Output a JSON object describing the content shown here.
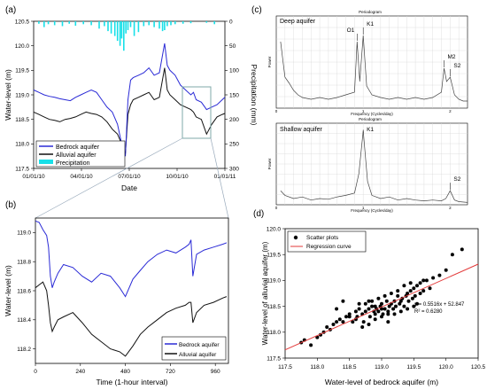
{
  "panel_labels": {
    "a": "(a)",
    "b": "(b)",
    "c": "(c)",
    "d": "(d)"
  },
  "colors": {
    "bedrock": "#2a2ad6",
    "alluvial": "#111111",
    "precip": "#18e0e8",
    "regression": "#e33a3a",
    "scatter": "#000000",
    "highlight_box": "#7fa9a9"
  },
  "chart_data": [
    {
      "id": "a",
      "type": "line",
      "xlabel": "Date",
      "ylabel": "Water-level (m)",
      "y2label": "Precipitation (mm)",
      "xticks": [
        "01/01/10",
        "04/01/10",
        "07/01/10",
        "10/01/10",
        "01/01/11"
      ],
      "yticks": [
        "117.5",
        "118.0",
        "118.5",
        "119.0",
        "119.5",
        "120.0",
        "120.5"
      ],
      "y2ticks": [
        "0",
        "50",
        "100",
        "150",
        "200",
        "250",
        "300"
      ],
      "ylim": [
        117.5,
        120.5
      ],
      "y2lim": [
        0,
        300
      ],
      "x_unit": "day of 2010",
      "xlim": [
        0,
        365
      ],
      "legend": [
        "Bedrock aquifer",
        "Alluvial aquifer",
        "Precipitation"
      ],
      "legend_position": "bottom-left",
      "series": [
        {
          "name": "Bedrock aquifer",
          "x": [
            0,
            10,
            20,
            30,
            40,
            50,
            60,
            70,
            80,
            90,
            100,
            110,
            120,
            130,
            140,
            150,
            160,
            170,
            175,
            180,
            185,
            190,
            200,
            210,
            220,
            230,
            240,
            250,
            255,
            260,
            270,
            280,
            290,
            300,
            305,
            310,
            320,
            330,
            340,
            350,
            360,
            365
          ],
          "y": [
            119.1,
            119.05,
            119.0,
            118.97,
            118.95,
            118.92,
            118.9,
            118.88,
            118.95,
            119.0,
            119.05,
            119.1,
            119.05,
            118.9,
            118.75,
            118.65,
            118.4,
            117.9,
            117.75,
            118.9,
            119.3,
            119.35,
            119.4,
            119.45,
            119.55,
            119.4,
            119.45,
            120.05,
            119.6,
            119.5,
            119.4,
            119.2,
            119.1,
            119.0,
            119.05,
            118.9,
            118.85,
            118.7,
            118.75,
            118.8,
            118.9,
            118.95
          ]
        },
        {
          "name": "Alluvial aquifer",
          "x": [
            0,
            10,
            20,
            30,
            40,
            50,
            60,
            70,
            80,
            90,
            100,
            110,
            120,
            130,
            140,
            150,
            160,
            170,
            175,
            180,
            185,
            190,
            200,
            210,
            220,
            230,
            240,
            250,
            255,
            260,
            270,
            280,
            290,
            300,
            305,
            310,
            320,
            330,
            340,
            350,
            360,
            365
          ],
          "y": [
            118.65,
            118.6,
            118.55,
            118.5,
            118.48,
            118.45,
            118.5,
            118.52,
            118.55,
            118.6,
            118.65,
            118.62,
            118.6,
            118.55,
            118.45,
            118.3,
            118.2,
            117.95,
            117.8,
            118.6,
            118.8,
            118.9,
            118.95,
            119.0,
            119.05,
            118.9,
            118.95,
            119.55,
            119.1,
            119.0,
            118.9,
            118.8,
            118.75,
            118.7,
            118.65,
            118.55,
            118.5,
            118.2,
            118.4,
            118.55,
            118.6,
            118.62
          ]
        },
        {
          "name": "Precipitation",
          "x": [
            10,
            20,
            28,
            40,
            55,
            68,
            80,
            95,
            110,
            125,
            135,
            142,
            148,
            155,
            160,
            165,
            168,
            172,
            176,
            180,
            185,
            192,
            200,
            210,
            220,
            230,
            240,
            246,
            250,
            255,
            262,
            270,
            285,
            300,
            330,
            345
          ],
          "y": [
            5,
            12,
            6,
            8,
            10,
            5,
            9,
            6,
            8,
            15,
            10,
            20,
            25,
            30,
            40,
            50,
            35,
            60,
            25,
            18,
            12,
            30,
            22,
            10,
            8,
            12,
            15,
            20,
            18,
            10,
            8,
            6,
            5,
            4,
            3,
            6
          ]
        }
      ]
    },
    {
      "id": "b",
      "type": "line",
      "xlabel": "Time (1-hour interval)",
      "ylabel": "Water-level (m)",
      "xticks": [
        "0",
        "240",
        "480",
        "720",
        "960"
      ],
      "yticks": [
        "118.2",
        "118.4",
        "118.6",
        "118.8",
        "119.0"
      ],
      "xlim": [
        0,
        1030
      ],
      "ylim": [
        118.1,
        119.1
      ],
      "legend": [
        "Bedrock aquifer",
        "Alluvial aquifer"
      ],
      "legend_position": "bottom-right",
      "series": [
        {
          "name": "Bedrock aquifer",
          "x": [
            0,
            20,
            40,
            60,
            70,
            80,
            90,
            100,
            120,
            150,
            200,
            250,
            300,
            350,
            400,
            450,
            480,
            520,
            560,
            600,
            650,
            700,
            750,
            800,
            820,
            830,
            840,
            860,
            900,
            950,
            1000,
            1020
          ],
          "y": [
            119.08,
            119.07,
            119.02,
            118.98,
            118.9,
            118.7,
            118.62,
            118.66,
            118.72,
            118.78,
            118.76,
            118.7,
            118.66,
            118.72,
            118.7,
            118.62,
            118.56,
            118.68,
            118.74,
            118.8,
            118.85,
            118.88,
            118.86,
            118.9,
            118.92,
            118.95,
            118.7,
            118.85,
            118.88,
            118.9,
            118.92,
            118.93
          ]
        },
        {
          "name": "Alluvial aquifer",
          "x": [
            0,
            20,
            40,
            60,
            70,
            80,
            90,
            100,
            120,
            150,
            200,
            250,
            300,
            350,
            400,
            450,
            480,
            520,
            560,
            600,
            650,
            700,
            750,
            800,
            820,
            830,
            840,
            860,
            900,
            950,
            1000,
            1020
          ],
          "y": [
            118.62,
            118.64,
            118.66,
            118.6,
            118.5,
            118.38,
            118.32,
            118.35,
            118.4,
            118.42,
            118.45,
            118.38,
            118.3,
            118.25,
            118.2,
            118.18,
            118.15,
            118.22,
            118.3,
            118.35,
            118.4,
            118.45,
            118.48,
            118.5,
            118.52,
            118.52,
            118.38,
            118.45,
            118.5,
            118.52,
            118.55,
            118.56
          ]
        }
      ]
    },
    {
      "id": "c_deep",
      "type": "line",
      "title": "Periodogram",
      "panel_title": "Deep aquifer",
      "xlabel": "Frequency (Cycles/day)",
      "ylabel": "Power",
      "xticks": [
        "0",
        "1",
        "2"
      ],
      "xlim": [
        0,
        2.2
      ],
      "annotations": [
        {
          "label": "O1",
          "x": 0.93
        },
        {
          "label": "K1",
          "x": 1.0
        },
        {
          "label": "M2",
          "x": 1.93
        },
        {
          "label": "S2",
          "x": 2.0
        }
      ],
      "series": [
        {
          "name": "",
          "x": [
            0.05,
            0.1,
            0.15,
            0.2,
            0.25,
            0.3,
            0.4,
            0.5,
            0.6,
            0.7,
            0.8,
            0.9,
            0.93,
            0.96,
            1.0,
            1.04,
            1.1,
            1.2,
            1.3,
            1.4,
            1.5,
            1.6,
            1.7,
            1.8,
            1.9,
            1.93,
            1.96,
            2.0,
            2.05,
            2.1,
            2.15,
            2.2
          ],
          "y": [
            0.75,
            0.35,
            0.28,
            0.2,
            0.15,
            0.12,
            0.1,
            0.12,
            0.1,
            0.12,
            0.15,
            0.18,
            0.75,
            0.3,
            0.82,
            0.25,
            0.15,
            0.12,
            0.1,
            0.12,
            0.1,
            0.12,
            0.1,
            0.12,
            0.18,
            0.45,
            0.3,
            0.35,
            0.15,
            0.1,
            0.08,
            0.08
          ]
        }
      ]
    },
    {
      "id": "c_shallow",
      "type": "line",
      "title": "Periodogram",
      "panel_title": "Shallow aquifer",
      "xlabel": "Frequency (Cycles/day)",
      "ylabel": "Power",
      "xticks": [
        "0",
        "1",
        "2"
      ],
      "xlim": [
        0,
        2.2
      ],
      "annotations": [
        {
          "label": "K1",
          "x": 1.0
        },
        {
          "label": "S2",
          "x": 2.0
        }
      ],
      "series": [
        {
          "name": "",
          "x": [
            0.05,
            0.1,
            0.2,
            0.3,
            0.4,
            0.5,
            0.6,
            0.7,
            0.8,
            0.9,
            0.95,
            1.0,
            1.05,
            1.1,
            1.2,
            1.3,
            1.4,
            1.5,
            1.6,
            1.7,
            1.8,
            1.9,
            1.95,
            2.0,
            2.05,
            2.1,
            2.2
          ],
          "y": [
            0.18,
            0.12,
            0.08,
            0.1,
            0.06,
            0.08,
            0.07,
            0.1,
            0.12,
            0.15,
            0.4,
            0.95,
            0.3,
            0.12,
            0.08,
            0.1,
            0.06,
            0.08,
            0.06,
            0.05,
            0.06,
            0.05,
            0.08,
            0.18,
            0.06,
            0.04,
            0.03
          ]
        }
      ]
    },
    {
      "id": "d",
      "type": "scatter",
      "xlabel": "Water-level of bedrock aquifer (m)",
      "ylabel": "Water-level of alluvial aquifer (m)",
      "xticks": [
        "117.5",
        "118.0",
        "118.5",
        "119.0",
        "119.5",
        "120.0",
        "120.5"
      ],
      "yticks": [
        "117.5",
        "118.0",
        "118.5",
        "119.0",
        "119.5",
        "120.0"
      ],
      "xlim": [
        117.5,
        120.5
      ],
      "ylim": [
        117.5,
        120.0
      ],
      "legend": [
        "Scatter plots",
        "Regression curve"
      ],
      "legend_position": "top-left",
      "equation": "y = 0.5516x + 52.847",
      "r_squared": "R² = 0.6280",
      "regression": {
        "slope": 0.5516,
        "intercept": 52.847
      },
      "points_x": [
        117.75,
        117.8,
        117.9,
        118.0,
        118.05,
        118.1,
        118.15,
        118.2,
        118.25,
        118.3,
        118.35,
        118.4,
        118.45,
        118.5,
        118.55,
        118.6,
        118.62,
        118.65,
        118.7,
        118.72,
        118.75,
        118.8,
        118.82,
        118.85,
        118.88,
        118.9,
        118.92,
        118.95,
        118.98,
        119.0,
        119.02,
        119.05,
        119.08,
        119.1,
        119.12,
        119.15,
        119.18,
        119.2,
        119.22,
        119.25,
        119.28,
        119.3,
        119.32,
        119.35,
        119.38,
        119.4,
        119.42,
        119.45,
        119.48,
        119.5,
        119.52,
        119.55,
        119.6,
        119.65,
        119.7,
        119.75,
        119.8,
        119.9,
        120.0,
        120.1,
        120.25,
        118.6,
        118.7,
        118.8,
        118.9,
        119.0,
        119.1,
        119.2,
        119.3,
        119.4,
        119.5,
        118.75,
        118.85,
        118.95,
        119.05,
        119.15,
        119.25,
        119.35,
        119.45,
        118.5,
        118.65,
        118.3,
        118.4,
        119.55,
        119.6,
        119.65,
        118.9,
        119.0,
        119.1,
        118.8
      ],
      "points_y": [
        117.8,
        117.85,
        117.75,
        117.9,
        117.95,
        118.0,
        118.1,
        118.05,
        118.15,
        118.2,
        118.25,
        118.2,
        118.3,
        118.35,
        118.2,
        118.4,
        118.3,
        118.45,
        118.35,
        118.2,
        118.4,
        118.45,
        118.3,
        118.5,
        118.4,
        118.35,
        118.45,
        118.4,
        118.5,
        118.55,
        118.35,
        118.45,
        118.6,
        118.4,
        118.5,
        118.55,
        118.45,
        118.6,
        118.5,
        118.7,
        118.55,
        118.6,
        118.65,
        118.5,
        118.7,
        118.75,
        118.6,
        118.8,
        118.65,
        118.85,
        118.7,
        118.9,
        118.95,
        118.8,
        119.0,
        118.85,
        119.05,
        119.1,
        119.2,
        119.5,
        119.6,
        118.25,
        118.1,
        118.15,
        118.25,
        118.3,
        118.2,
        118.35,
        118.4,
        118.45,
        118.5,
        118.55,
        118.6,
        118.65,
        118.7,
        118.75,
        118.8,
        118.9,
        118.95,
        118.3,
        118.55,
        118.45,
        118.6,
        118.55,
        118.75,
        119.0,
        118.5,
        118.45,
        118.35,
        118.6
      ]
    }
  ]
}
